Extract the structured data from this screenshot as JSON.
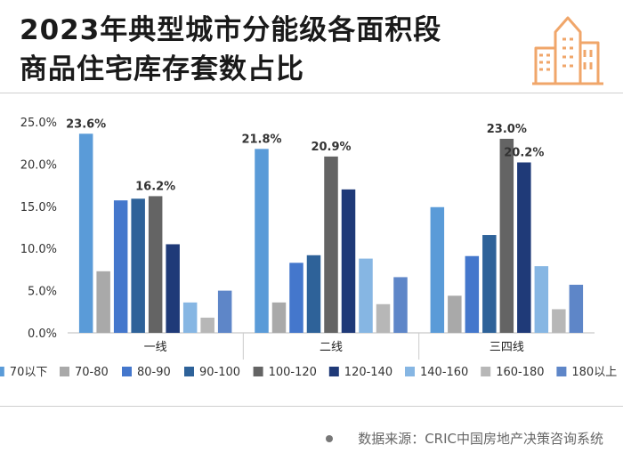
{
  "title": {
    "line1": "2023年典型城市分能级各面积段",
    "line2": "商品住宅库存套数占比"
  },
  "source": "数据来源：CRIC中国房地产决策咨询系统",
  "colors": {
    "accent": "#F0A66A",
    "series": [
      "#5A9BD8",
      "#A9A9A9",
      "#4477CC",
      "#2E6299",
      "#646464",
      "#1F3A78",
      "#86B6E3",
      "#B7B7B7",
      "#5E86C8"
    ]
  },
  "chart_data": {
    "type": "bar",
    "categories": [
      "一线",
      "二线",
      "三四线"
    ],
    "ylim": [
      0,
      25
    ],
    "yticks": [
      "25.0%",
      "20.0%",
      "15.0%",
      "10.0%",
      "5.0%",
      "0.0%"
    ],
    "series": [
      {
        "name": "70以下",
        "values": [
          23.6,
          21.8,
          14.9
        ]
      },
      {
        "name": "70-80",
        "values": [
          7.3,
          3.6,
          4.4
        ]
      },
      {
        "name": "80-90",
        "values": [
          15.7,
          8.3,
          9.1
        ]
      },
      {
        "name": "90-100",
        "values": [
          15.9,
          9.2,
          11.6
        ]
      },
      {
        "name": "100-120",
        "values": [
          16.2,
          20.9,
          23.0
        ]
      },
      {
        "name": "120-140",
        "values": [
          10.5,
          17.0,
          20.2
        ]
      },
      {
        "name": "140-160",
        "values": [
          3.6,
          8.8,
          7.9
        ]
      },
      {
        "name": "160-180",
        "values": [
          1.8,
          3.4,
          2.8
        ]
      },
      {
        "name": "180以上",
        "values": [
          5.0,
          6.6,
          5.7
        ]
      }
    ],
    "data_labels": [
      {
        "series": 0,
        "category": 0,
        "text": "23.6%"
      },
      {
        "series": 4,
        "category": 0,
        "text": "16.2%"
      },
      {
        "series": 0,
        "category": 1,
        "text": "21.8%"
      },
      {
        "series": 4,
        "category": 1,
        "text": "20.9%"
      },
      {
        "series": 4,
        "category": 2,
        "text": "23.0%"
      },
      {
        "series": 5,
        "category": 2,
        "text": "20.2%"
      }
    ],
    "legend_position": "bottom",
    "grid": false
  }
}
